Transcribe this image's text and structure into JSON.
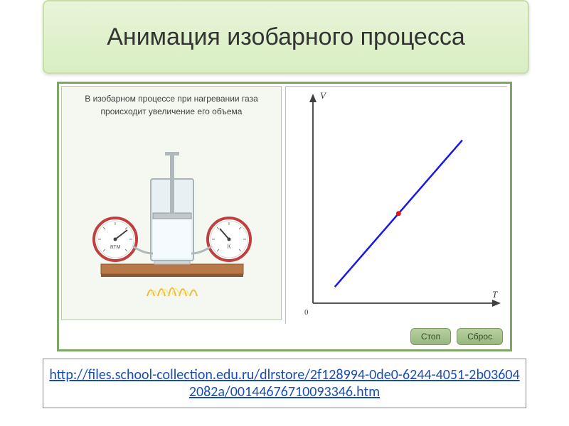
{
  "title": "Анимация изобарного процесса",
  "simulation": {
    "description_line1": "В изобарном процессе при нагревании газа",
    "description_line2": "происходит увеличение его объема",
    "gauge_left_label": "атм",
    "gauge_right_label": "К",
    "buttons": {
      "stop": "Стоп",
      "reset": "Сброс"
    },
    "apparatus": {
      "table_color": "#b87848",
      "table_edge_color": "#8a5830",
      "cylinder_fill": "#e8f0f4",
      "cylinder_stroke": "#a8b4b8",
      "piston_color": "#c0c8cc",
      "flame_colors": [
        "#f8e870",
        "#f0b840"
      ],
      "gauge_face": "#ffffff",
      "gauge_rim": "#c04040",
      "gauge_needle": "#404040"
    },
    "chart": {
      "type": "line",
      "y_label": "V",
      "x_label": "T",
      "origin_label": "0",
      "axis_color": "#404040",
      "line_color": "#1818e8",
      "line_width": 2.5,
      "point_color": "#e01818",
      "point_radius": 3.5,
      "background": "#ffffff",
      "xlim": [
        0,
        10
      ],
      "ylim": [
        0,
        10
      ],
      "line_start": [
        1.2,
        0.8
      ],
      "line_end": [
        8.2,
        8.0
      ],
      "marker_pos": [
        4.7,
        4.4
      ]
    },
    "frame_border": "#7ca864",
    "panel_bg": "#f5f8f0"
  },
  "url": "http://files.school-collection.edu.ru/dlrstore/2f128994-0de0-6244-4051-2b036042082a/00144676710093346.htm",
  "colors": {
    "title_bg_top": "#e8f5d8",
    "title_bg_bottom": "#d8eec2",
    "title_border": "#c8e0a8",
    "link_color": "#1a4db3"
  },
  "fonts": {
    "title_size": 34,
    "description_size": 12,
    "url_size": 20
  }
}
